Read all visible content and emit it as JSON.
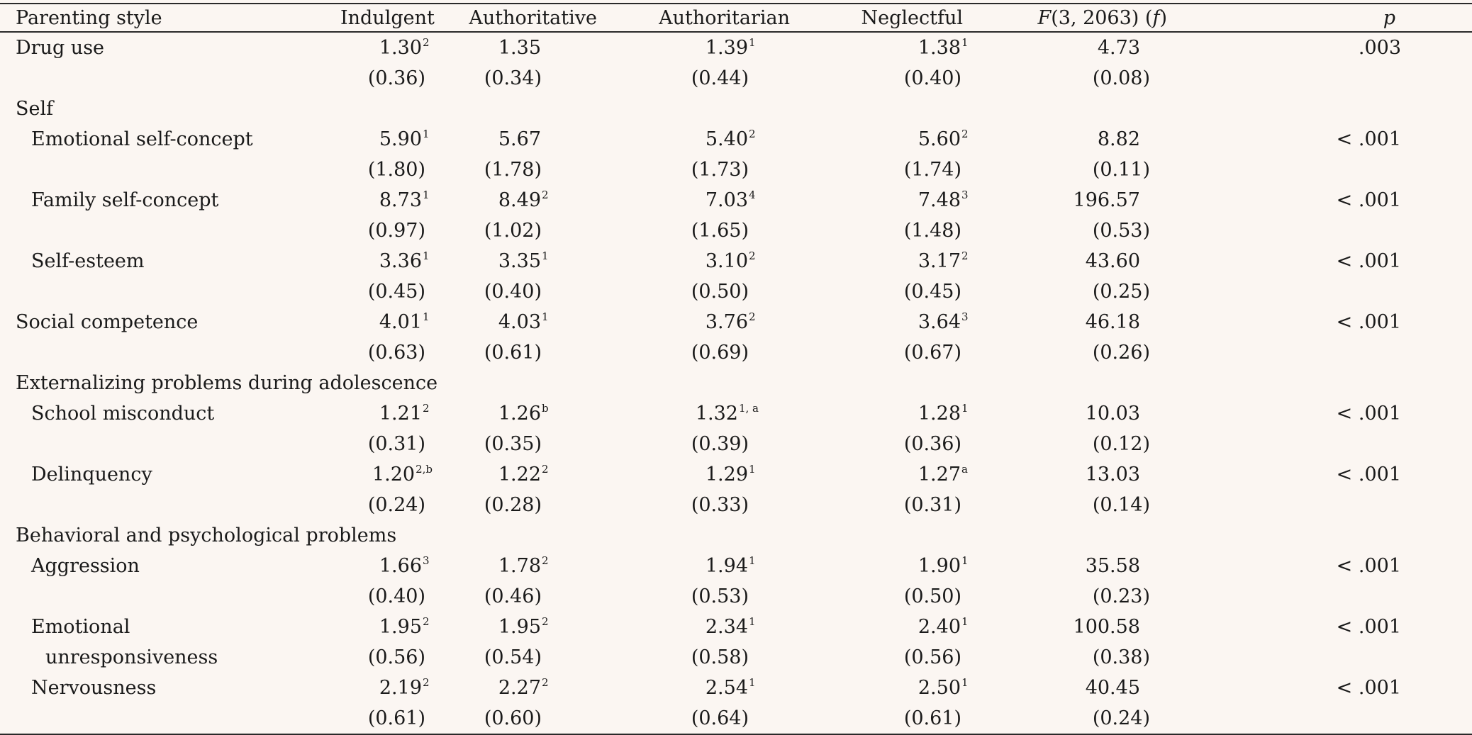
{
  "headers": {
    "label": "Parenting style",
    "indulgent": "Indulgent",
    "authoritative": "Authoritative",
    "authoritarian": "Authoritarian",
    "neglectful": "Neglectful",
    "f_F": "F",
    "f_rest": "(3, 2063) (",
    "f_f": "f",
    "f_close": ")",
    "p": "p"
  },
  "rows": [
    {
      "label": "Drug use",
      "indulgent": "1.30",
      "indulgent_sup": "2",
      "authoritative": "1.35",
      "authoritative_sup": "",
      "authoritarian": "1.39",
      "authoritarian_sup": "1",
      "neglectful": "1.38",
      "neglectful_sup": "1",
      "f": "4.73",
      "p": ".003",
      "sd": {
        "indulgent": "(0.36)",
        "authoritative": "(0.34)",
        "authoritarian": "(0.44)",
        "neglectful": "(0.40)",
        "f": "(0.08)"
      }
    },
    {
      "section": "Self"
    },
    {
      "label": "Emotional self-concept",
      "indulgent": "5.90",
      "indulgent_sup": "1",
      "authoritative": "5.67",
      "authoritative_sup": "",
      "authoritarian": "5.40",
      "authoritarian_sup": "2",
      "neglectful": "5.60",
      "neglectful_sup": "2",
      "f": "8.82",
      "p": "< .001",
      "sd": {
        "indulgent": "(1.80)",
        "authoritative": "(1.78)",
        "authoritarian": "(1.73)",
        "neglectful": "(1.74)",
        "f": "(0.11)"
      }
    },
    {
      "label": "Family self-concept",
      "indulgent": "8.73",
      "indulgent_sup": "1",
      "authoritative": "8.49",
      "authoritative_sup": "2",
      "authoritarian": "7.03",
      "authoritarian_sup": "4",
      "neglectful": "7.48",
      "neglectful_sup": "3",
      "f": "196.57",
      "p": "< .001",
      "sd": {
        "indulgent": "(0.97)",
        "authoritative": "(1.02)",
        "authoritarian": "(1.65)",
        "neglectful": "(1.48)",
        "f": "(0.53)"
      }
    },
    {
      "label": "Self-esteem",
      "indulgent": "3.36",
      "indulgent_sup": "1",
      "authoritative": "3.35",
      "authoritative_sup": "1",
      "authoritarian": "3.10",
      "authoritarian_sup": "2",
      "neglectful": "3.17",
      "neglectful_sup": "2",
      "f": "43.60",
      "p": "< .001",
      "sd": {
        "indulgent": "(0.45)",
        "authoritative": "(0.40)",
        "authoritarian": "(0.50)",
        "neglectful": "(0.45)",
        "f": "(0.25)"
      }
    },
    {
      "label": "Social competence",
      "top": true,
      "indulgent": "4.01",
      "indulgent_sup": "1",
      "authoritative": "4.03",
      "authoritative_sup": "1",
      "authoritarian": "3.76",
      "authoritarian_sup": "2",
      "neglectful": "3.64",
      "neglectful_sup": "3",
      "f": "46.18",
      "p": "< .001",
      "sd": {
        "indulgent": "(0.63)",
        "authoritative": "(0.61)",
        "authoritarian": "(0.69)",
        "neglectful": "(0.67)",
        "f": "(0.26)"
      }
    },
    {
      "section": "Externalizing problems during adolescence"
    },
    {
      "label": "School misconduct",
      "indulgent": "1.21",
      "indulgent_sup": "2",
      "authoritative": "1.26",
      "authoritative_sup": "b",
      "authoritarian": "1.32",
      "authoritarian_sup": "1, a",
      "neglectful": "1.28",
      "neglectful_sup": "1",
      "f": "10.03",
      "p": "< .001",
      "sd": {
        "indulgent": "(0.31)",
        "authoritative": "(0.35)",
        "authoritarian": "(0.39)",
        "neglectful": "(0.36)",
        "f": "(0.12)"
      }
    },
    {
      "label": "Delinquency",
      "indulgent": "1.20",
      "indulgent_sup": "2,b",
      "authoritative": "1.22",
      "authoritative_sup": "2",
      "authoritarian": "1.29",
      "authoritarian_sup": "1",
      "neglectful": "1.27",
      "neglectful_sup": "a",
      "f": "13.03",
      "p": "< .001",
      "sd": {
        "indulgent": "(0.24)",
        "authoritative": "(0.28)",
        "authoritarian": "(0.33)",
        "neglectful": "(0.31)",
        "f": "(0.14)"
      }
    },
    {
      "section": "Behavioral and psychological problems"
    },
    {
      "label": "Aggression",
      "indulgent": "1.66",
      "indulgent_sup": "3",
      "authoritative": "1.78",
      "authoritative_sup": "2",
      "authoritarian": "1.94",
      "authoritarian_sup": "1",
      "neglectful": "1.90",
      "neglectful_sup": "1",
      "f": "35.58",
      "p": "< .001",
      "sd": {
        "indulgent": "(0.40)",
        "authoritative": "(0.46)",
        "authoritarian": "(0.53)",
        "neglectful": "(0.50)",
        "f": "(0.23)"
      }
    },
    {
      "label": "Emotional",
      "label2": "unresponsiveness",
      "indulgent": "1.95",
      "indulgent_sup": "2",
      "authoritative": "1.95",
      "authoritative_sup": "2",
      "authoritarian": "2.34",
      "authoritarian_sup": "1",
      "neglectful": "2.40",
      "neglectful_sup": "1",
      "f": "100.58",
      "p": "< .001",
      "sd": {
        "indulgent": "(0.56)",
        "authoritative": "(0.54)",
        "authoritarian": "(0.58)",
        "neglectful": "(0.56)",
        "f": "(0.38)"
      }
    },
    {
      "label": "Nervousness",
      "indulgent": "2.19",
      "indulgent_sup": "2",
      "authoritative": "2.27",
      "authoritative_sup": "2",
      "authoritarian": "2.54",
      "authoritarian_sup": "1",
      "neglectful": "2.50",
      "neglectful_sup": "1",
      "f": "40.45",
      "p": "< .001",
      "sd": {
        "indulgent": "(0.61)",
        "authoritative": "(0.60)",
        "authoritarian": "(0.64)",
        "neglectful": "(0.61)",
        "f": "(0.24)"
      }
    }
  ]
}
